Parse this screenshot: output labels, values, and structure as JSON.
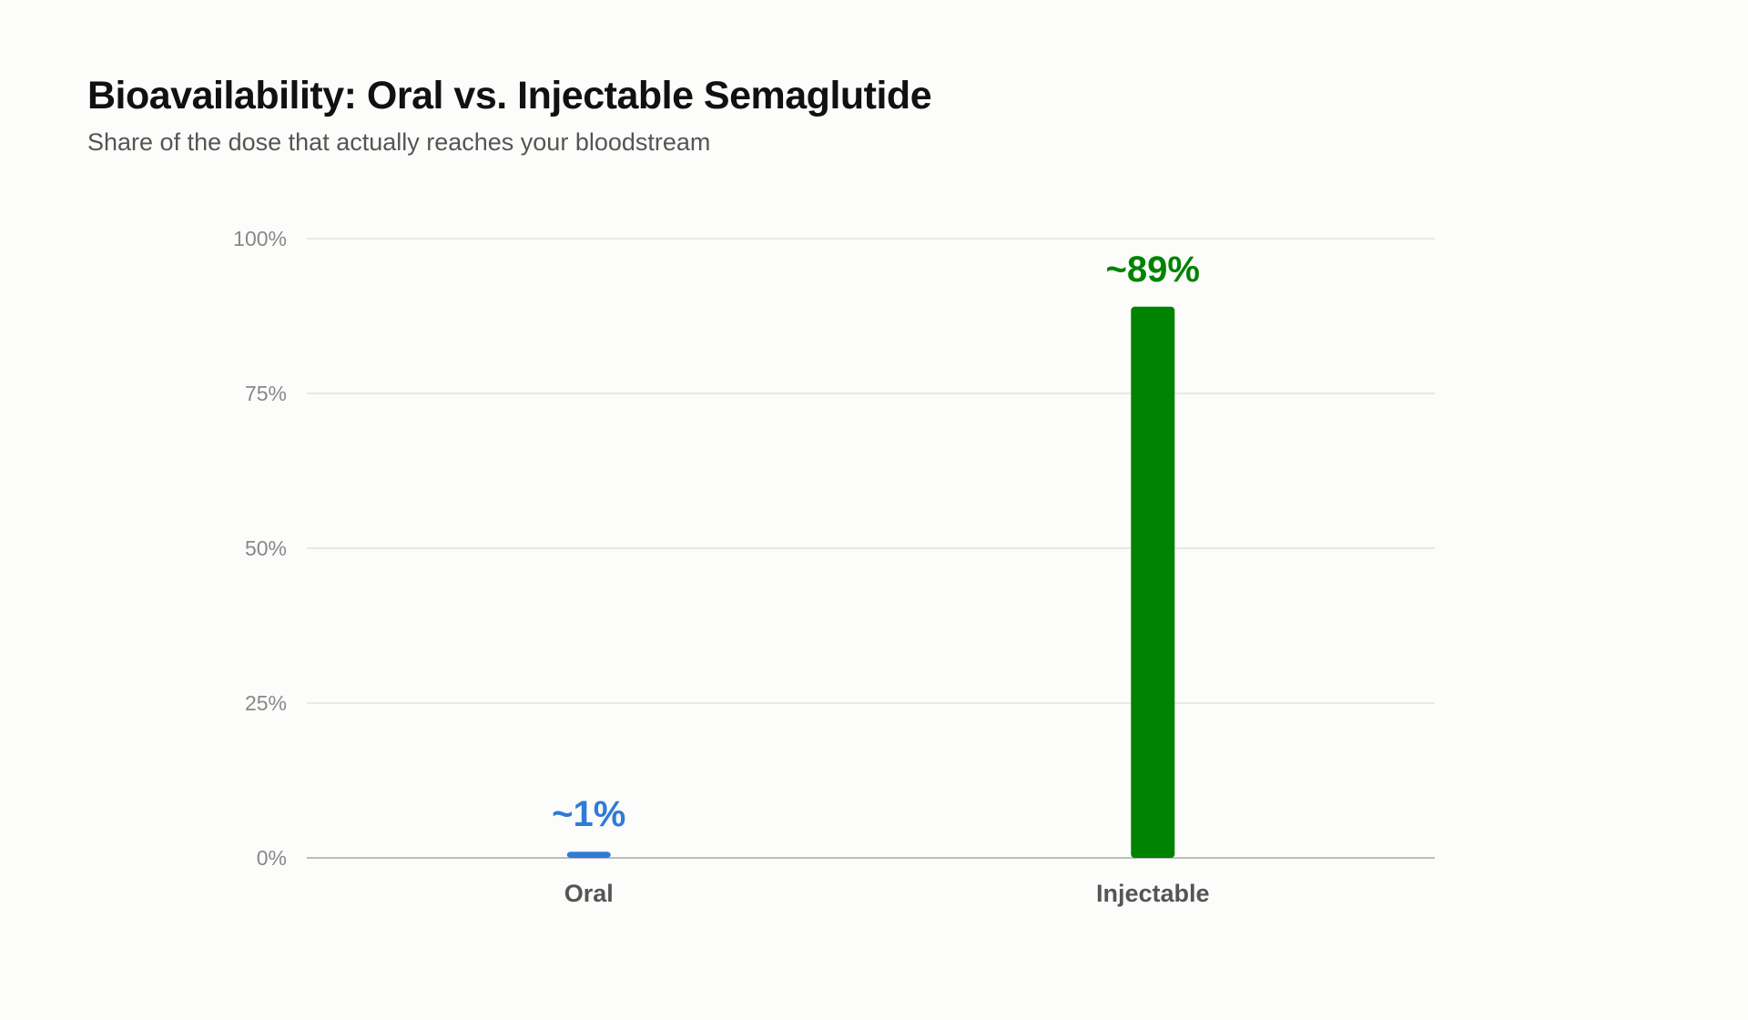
{
  "header": {
    "title": "Bioavailability: Oral vs. Injectable Semaglutide",
    "subtitle": "Share of the dose that actually reaches your bloodstream"
  },
  "chart_data": {
    "type": "bar",
    "title": "Bioavailability: Oral vs. Injectable Semaglutide",
    "subtitle": "Share of the dose that actually reaches your bloodstream",
    "xlabel": "",
    "ylabel": "",
    "ylim": [
      0,
      100
    ],
    "yticks": [
      0,
      25,
      50,
      75,
      100
    ],
    "ytick_labels": [
      "0%",
      "25%",
      "50%",
      "75%",
      "100%"
    ],
    "grid": true,
    "categories": [
      "Oral",
      "Injectable"
    ],
    "values": [
      1,
      89
    ],
    "data_labels": [
      "~1%",
      "~89%"
    ],
    "colors": [
      "#2f7bd6",
      "#008300"
    ]
  }
}
